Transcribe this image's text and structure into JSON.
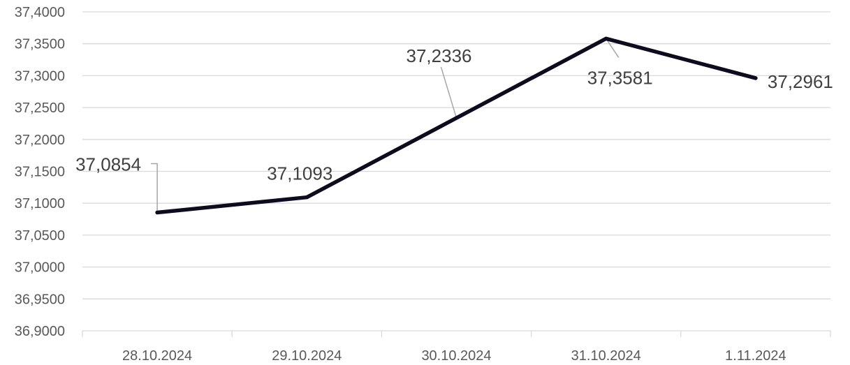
{
  "chart_data": {
    "type": "line",
    "categories": [
      "28.10.2024",
      "29.10.2024",
      "30.10.2024",
      "31.10.2024",
      "1.11.2024"
    ],
    "values": [
      37.0854,
      37.1093,
      37.2336,
      37.3581,
      37.2961
    ],
    "data_labels": [
      "37,0854",
      "37,1093",
      "37,2336",
      "37,3581",
      "37,2961"
    ],
    "y_ticks": [
      "36,9000",
      "36,9500",
      "37,0000",
      "37,0500",
      "37,1000",
      "37,1500",
      "37,2000",
      "37,2500",
      "37,3000",
      "37,3500",
      "37,4000"
    ],
    "ylim": [
      36.9,
      37.4
    ],
    "grid": true,
    "legend": "none",
    "colors": {
      "line": "#0d0b1e",
      "grid": "#d9d9d9",
      "tick_text": "#595959",
      "label_text": "#404040",
      "leader": "#a6a6a6"
    }
  }
}
